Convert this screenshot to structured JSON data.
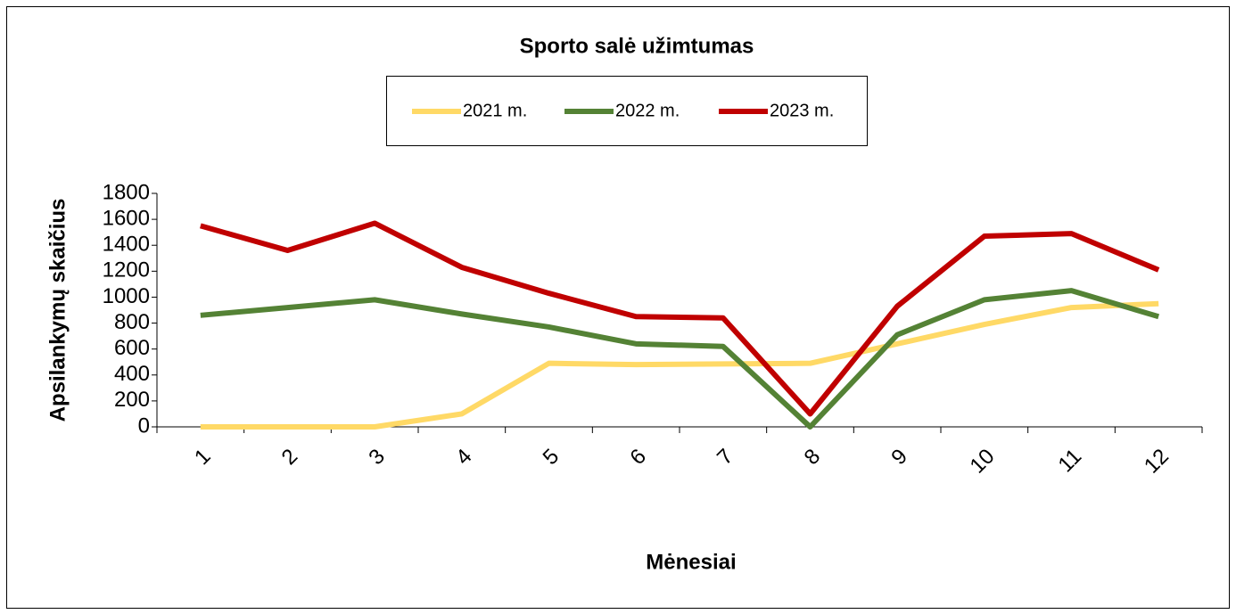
{
  "chart_data": {
    "type": "line",
    "title": "Sporto salė užimtumas",
    "x_label": "Mėnesiai",
    "y_label": "Apsilankymų skaičius",
    "categories": [
      "1",
      "2",
      "3",
      "4",
      "5",
      "6",
      "7",
      "8",
      "9",
      "10",
      "11",
      "12"
    ],
    "series": [
      {
        "name": "2021 m.",
        "color": "#ffd966",
        "values": [
          0,
          0,
          0,
          100,
          490,
          480,
          485,
          490,
          640,
          790,
          920,
          950
        ]
      },
      {
        "name": "2022 m.",
        "color": "#548235",
        "values": [
          860,
          920,
          980,
          870,
          770,
          640,
          620,
          0,
          710,
          980,
          1050,
          850
        ]
      },
      {
        "name": "2023 m.",
        "color": "#c00000",
        "values": [
          1550,
          1360,
          1570,
          1230,
          1030,
          850,
          840,
          100,
          930,
          1470,
          1490,
          1210
        ]
      }
    ],
    "ylim": [
      0,
      1800
    ],
    "yticks": [
      0,
      200,
      400,
      600,
      800,
      1000,
      1200,
      1400,
      1600,
      1800
    ],
    "legend": "top"
  }
}
